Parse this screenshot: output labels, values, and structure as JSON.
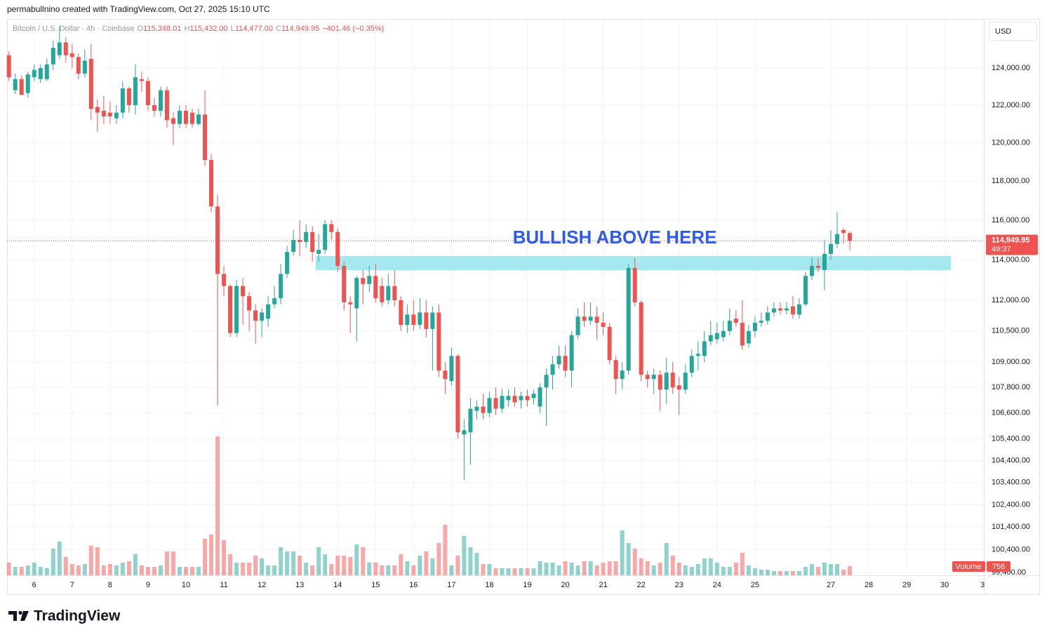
{
  "credit": "permabullnino created with TradingView.com, Oct 27, 2025 15:10 UTC",
  "currency_button": "USD",
  "brand": "TradingView",
  "chart_data": {
    "type": "candlestick",
    "title": "Bitcoin / U.S. Dollar · 4h · Coinbase",
    "ohlc_keys": [
      "O",
      "H",
      "L",
      "C"
    ],
    "ohlc_texts": [
      "115,348.01",
      "115,432.00",
      "114,477.00",
      "114,949.95"
    ],
    "change_text": "−401.46 (−0.35%)",
    "last_price_label": "114,949.95",
    "countdown": "49:37",
    "volume_title": "Volume",
    "annotation": "BULLISH ABOVE HERE",
    "zone": {
      "xlim": [
        44.5,
        145
      ],
      "ylim": [
        113490,
        114190
      ],
      "color": "#a6e8ef"
    },
    "annotation_color": "#2e5bea",
    "up_color": "#26a69a",
    "down_color": "#ef5350",
    "log_scale": true,
    "grid": true,
    "xlim": [
      -4.3,
      150.2
    ],
    "ylim": [
      99280,
      126660
    ],
    "vlim": [
      0,
      12000
    ],
    "xticks": [
      {
        "value": 0,
        "label": "6"
      },
      {
        "value": 6,
        "label": "7"
      },
      {
        "value": 12,
        "label": "8"
      },
      {
        "value": 18,
        "label": "9"
      },
      {
        "value": 24,
        "label": "10"
      },
      {
        "value": 30,
        "label": "11"
      },
      {
        "value": 36,
        "label": "12"
      },
      {
        "value": 42,
        "label": "13"
      },
      {
        "value": 48,
        "label": "14"
      },
      {
        "value": 54,
        "label": "15"
      },
      {
        "value": 60,
        "label": "16"
      },
      {
        "value": 66,
        "label": "17"
      },
      {
        "value": 72,
        "label": "18"
      },
      {
        "value": 78,
        "label": "19"
      },
      {
        "value": 84,
        "label": "20"
      },
      {
        "value": 90,
        "label": "21"
      },
      {
        "value": 96,
        "label": "22"
      },
      {
        "value": 102,
        "label": "23"
      },
      {
        "value": 108,
        "label": "24"
      },
      {
        "value": 114,
        "label": "25"
      },
      {
        "value": 126,
        "label": "27"
      },
      {
        "value": 132,
        "label": "28"
      },
      {
        "value": 138,
        "label": "29"
      },
      {
        "value": 144,
        "label": "30"
      },
      {
        "value": 150,
        "label": "3"
      }
    ],
    "yticks": [
      {
        "value": 124000,
        "label": "124,000.00"
      },
      {
        "value": 122000,
        "label": "122,000.00"
      },
      {
        "value": 120000,
        "label": "120,000.00"
      },
      {
        "value": 118000,
        "label": "118,000.00"
      },
      {
        "value": 116000,
        "label": "116,000.00"
      },
      {
        "value": 114000,
        "label": "114,000.00"
      },
      {
        "value": 112000,
        "label": "112,000.00"
      },
      {
        "value": 110500,
        "label": "110,500.00"
      },
      {
        "value": 109000,
        "label": "109,000.00"
      },
      {
        "value": 107800,
        "label": "107,800.00"
      },
      {
        "value": 106600,
        "label": "106,600.00"
      },
      {
        "value": 105400,
        "label": "105,400.00"
      },
      {
        "value": 104400,
        "label": "104,400.00"
      },
      {
        "value": 103400,
        "label": "103,400.00"
      },
      {
        "value": 102400,
        "label": "102,400.00"
      },
      {
        "value": 101400,
        "label": "101,400.00"
      },
      {
        "value": 100400,
        "label": "100,400.00"
      },
      {
        "value": 99400,
        "label": "99,400.00"
      }
    ],
    "x": [
      -4,
      -3,
      -2,
      -1,
      0,
      1,
      2,
      3,
      4,
      5,
      6,
      7,
      8,
      9,
      10,
      11,
      12,
      13,
      14,
      15,
      16,
      17,
      18,
      19,
      20,
      21,
      22,
      23,
      24,
      25,
      26,
      27,
      28,
      29,
      30,
      31,
      32,
      33,
      34,
      35,
      36,
      37,
      38,
      39,
      40,
      41,
      42,
      43,
      44,
      45,
      46,
      47,
      48,
      49,
      50,
      51,
      52,
      53,
      54,
      55,
      56,
      57,
      58,
      59,
      60,
      61,
      62,
      63,
      64,
      65,
      66,
      67,
      68,
      69,
      70,
      71,
      72,
      73,
      74,
      75,
      76,
      77,
      78,
      79,
      80,
      81,
      82,
      83,
      84,
      85,
      86,
      87,
      88,
      89,
      90,
      91,
      92,
      93,
      94,
      95,
      96,
      97,
      98,
      99,
      100,
      101,
      102,
      103,
      104,
      105,
      106,
      107,
      108,
      109,
      110,
      111,
      112,
      113,
      114,
      115,
      116,
      117,
      118,
      119,
      120,
      121,
      122,
      123,
      124,
      125,
      126,
      127,
      128,
      129
    ],
    "open": [
      124700,
      122800,
      123400,
      122650,
      123500,
      123400,
      123400,
      124200,
      124700,
      125400,
      124800,
      124600,
      123700,
      124500,
      121900,
      121700,
      121600,
      121300,
      121600,
      122900,
      122000,
      123400,
      123300,
      122000,
      121700,
      122800,
      121300,
      121000,
      121700,
      121600,
      121000,
      121500,
      119100,
      116700,
      113300,
      112700,
      110400,
      112700,
      112200,
      111500,
      111000,
      111100,
      111800,
      112100,
      113300,
      114400,
      115000,
      114900,
      115400,
      114300,
      114500,
      115800,
      115400,
      113700,
      111900,
      111600,
      113100,
      112800,
      113200,
      112700,
      112000,
      112700,
      112000,
      110800,
      111300,
      110800,
      111400,
      110600,
      111400,
      108600,
      108100,
      109300,
      105600,
      105700,
      106700,
      106900,
      106600,
      107300,
      106800,
      107200,
      107400,
      107200,
      107400,
      107300,
      106900,
      107800,
      108400,
      108900,
      109300,
      108600,
      110300,
      111200,
      111000,
      111200,
      110900,
      110700,
      109100,
      108200,
      108600,
      113600,
      111900,
      108400,
      108200,
      108400,
      107700,
      108500,
      107900,
      107700,
      108500,
      109300,
      109300,
      110000,
      110100,
      110200,
      110500,
      111100,
      110900,
      109900,
      110500,
      110900,
      111000,
      111400,
      111600,
      111500,
      111700,
      111300,
      111800,
      113200,
      113700,
      113500,
      114300,
      114800,
      115500,
      115348.01
    ],
    "high": [
      124900,
      123700,
      123600,
      123800,
      124200,
      124200,
      124500,
      125500,
      126300,
      125700,
      125300,
      124800,
      125000,
      125300,
      122300,
      122500,
      122200,
      122000,
      123300,
      123000,
      124200,
      123800,
      123500,
      122400,
      123000,
      123000,
      121600,
      122000,
      122000,
      121800,
      121800,
      122800,
      119400,
      117300,
      113700,
      112800,
      113000,
      113100,
      112400,
      111800,
      111600,
      112200,
      112700,
      113800,
      114700,
      115500,
      116000,
      115800,
      115700,
      115300,
      116000,
      116000,
      115600,
      113900,
      112200,
      113200,
      113500,
      113700,
      113800,
      113100,
      113300,
      113500,
      112200,
      111800,
      112000,
      112100,
      112000,
      111700,
      111800,
      109000,
      109700,
      109400,
      106300,
      107300,
      107200,
      107500,
      107600,
      107800,
      107700,
      107700,
      107800,
      107600,
      107700,
      107700,
      108000,
      108700,
      109300,
      109800,
      109800,
      110500,
      111600,
      111900,
      111900,
      111700,
      111400,
      110900,
      109300,
      109000,
      113800,
      114100,
      112000,
      108600,
      108700,
      108600,
      109200,
      109000,
      108300,
      108900,
      109600,
      110000,
      110500,
      111000,
      110900,
      111000,
      111600,
      111500,
      112000,
      110800,
      111200,
      111400,
      111700,
      111900,
      111900,
      111900,
      112200,
      112100,
      113400,
      114100,
      114100,
      115000,
      115500,
      116400,
      115600,
      115432
    ],
    "low": [
      123300,
      122600,
      122600,
      122400,
      123300,
      123200,
      123300,
      123900,
      124500,
      124300,
      124000,
      123400,
      123500,
      121200,
      120600,
      121000,
      121000,
      121000,
      121300,
      121600,
      121500,
      122700,
      121700,
      121400,
      121400,
      120800,
      119900,
      120800,
      120800,
      120800,
      120900,
      118800,
      116400,
      106950,
      112200,
      110200,
      110200,
      110800,
      110500,
      109900,
      110200,
      110700,
      111600,
      111800,
      113100,
      114200,
      114200,
      114600,
      113900,
      113900,
      114300,
      115000,
      113400,
      111500,
      110400,
      110000,
      111800,
      112400,
      111900,
      111700,
      111800,
      111700,
      110500,
      110400,
      110500,
      110600,
      110200,
      108600,
      108300,
      107500,
      107900,
      105400,
      103500,
      104200,
      106300,
      106300,
      106400,
      106500,
      106600,
      106900,
      106900,
      106800,
      106900,
      107000,
      106600,
      106000,
      107700,
      108700,
      108300,
      107800,
      110100,
      110700,
      110800,
      110100,
      110300,
      108900,
      107500,
      107700,
      108400,
      111700,
      108100,
      107800,
      107500,
      106700,
      107000,
      107500,
      106500,
      107500,
      108300,
      108600,
      109000,
      109800,
      109900,
      110000,
      110300,
      110700,
      109600,
      109700,
      110200,
      110700,
      110800,
      111200,
      111300,
      111300,
      111100,
      111100,
      111700,
      113000,
      113400,
      112500,
      114000,
      114600,
      114800,
      114477
    ],
    "close": [
      123500,
      123400,
      122550,
      123650,
      123900,
      124000,
      124200,
      125100,
      125400,
      124700,
      124600,
      123700,
      124400,
      121800,
      121600,
      121400,
      121400,
      121600,
      122900,
      122000,
      123500,
      123300,
      122000,
      121700,
      122800,
      121200,
      121000,
      121700,
      121000,
      121000,
      121500,
      119100,
      116700,
      113300,
      112700,
      110400,
      112700,
      112200,
      111500,
      111000,
      111400,
      111800,
      112100,
      113300,
      114400,
      115000,
      114900,
      115400,
      114400,
      114500,
      115800,
      115400,
      113700,
      111900,
      111800,
      113100,
      112800,
      113200,
      112100,
      111900,
      112700,
      112000,
      110800,
      111300,
      110800,
      111400,
      110600,
      111400,
      108600,
      108200,
      109300,
      105700,
      105800,
      106800,
      106900,
      106600,
      107300,
      106800,
      107400,
      107400,
      107100,
      107400,
      107200,
      107500,
      107800,
      108400,
      108900,
      109300,
      108600,
      110300,
      111200,
      111000,
      111200,
      110900,
      110700,
      109100,
      108200,
      108600,
      113600,
      111900,
      108400,
      108200,
      108400,
      107700,
      108500,
      107800,
      107700,
      108500,
      109300,
      109400,
      110000,
      110300,
      110400,
      110500,
      111000,
      110900,
      109800,
      110500,
      110900,
      111000,
      111400,
      111600,
      111500,
      111600,
      111300,
      111800,
      113200,
      113700,
      113600,
      114300,
      114800,
      115300,
      115350,
      114949.95
    ],
    "volume": [
      1044,
      696,
      696,
      812,
      1044,
      696,
      580,
      2204,
      2784,
      1508,
      928,
      812,
      928,
      2436,
      2320,
      812,
      928,
      812,
      1044,
      1160,
      1740,
      812,
      696,
      696,
      812,
      1972,
      1972,
      696,
      696,
      696,
      696,
      3016,
      3364,
      11484,
      2900,
      1740,
      1044,
      1044,
      1044,
      1624,
      1392,
      812,
      812,
      2320,
      1972,
      1972,
      1624,
      1044,
      812,
      2320,
      1740,
      928,
      1624,
      1624,
      1508,
      2552,
      2320,
      1044,
      1044,
      812,
      812,
      812,
      1740,
      1160,
      812,
      1624,
      1972,
      1392,
      2668,
      4176,
      812,
      1624,
      3248,
      2320,
      1856,
      928,
      928,
      580,
      580,
      580,
      580,
      580,
      580,
      580,
      1160,
      1044,
      1044,
      812,
      1160,
      1044,
      812,
      1160,
      1160,
      812,
      1044,
      1160,
      1160,
      3712,
      2668,
      2204,
      1392,
      1160,
      812,
      1044,
      2668,
      1624,
      1044,
      812,
      696,
      928,
      1392,
      1392,
      1044,
      696,
      696,
      1044,
      1856,
      812,
      580,
      464,
      464,
      348,
      348,
      348,
      348,
      348,
      696,
      928,
      696,
      1044,
      928,
      928,
      464,
      756
    ]
  }
}
